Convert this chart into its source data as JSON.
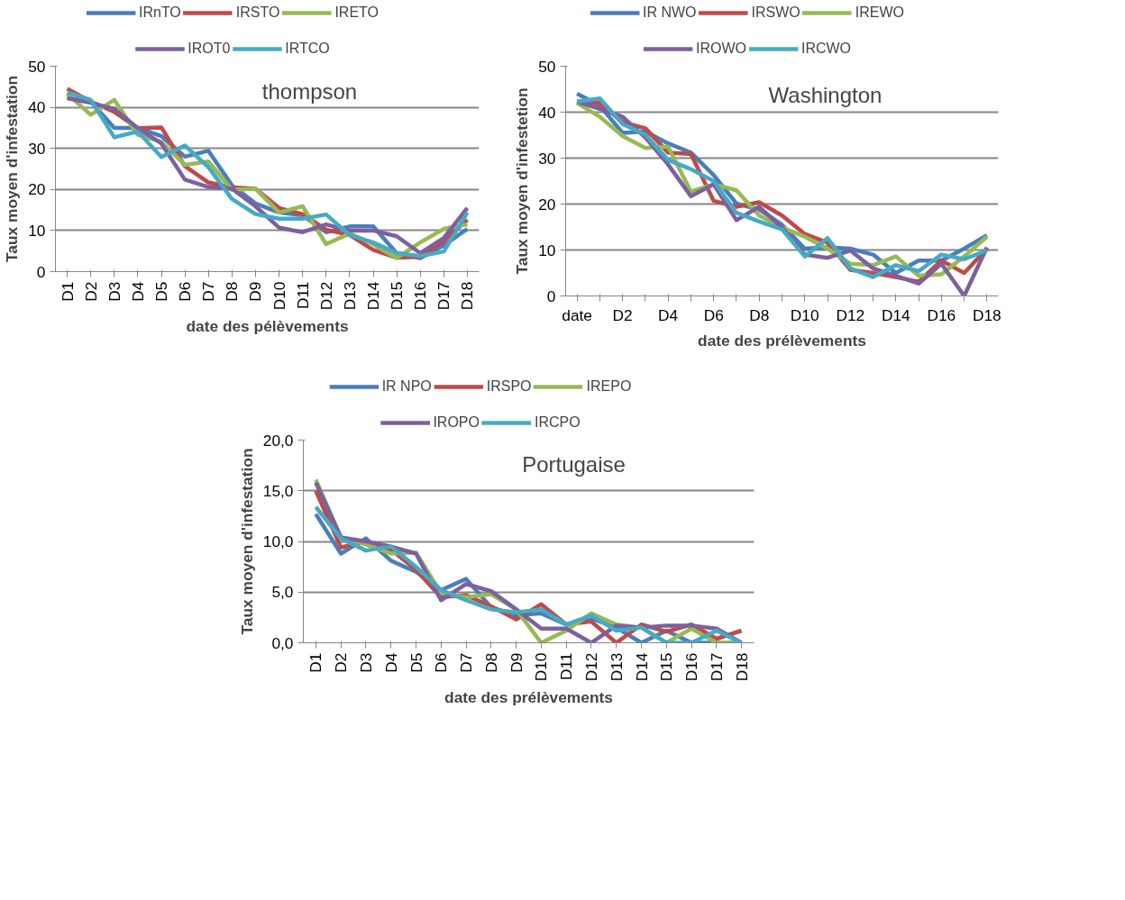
{
  "chart_data": [
    {
      "type": "line",
      "title": "thompson",
      "xlabel": "date des pélèvements",
      "ylabel": "Taux moyen d'infestation",
      "grid": "y",
      "legend": "top",
      "categories": [
        "D1",
        "D2",
        "D3",
        "D4",
        "D5",
        "D6",
        "D7",
        "D8",
        "D9",
        "D10",
        "D11",
        "D12",
        "D13",
        "D14",
        "D15",
        "D16",
        "D17",
        "D18"
      ],
      "ylim": [
        0,
        50
      ],
      "yticks": [
        0,
        10,
        20,
        30,
        40,
        50
      ],
      "series": [
        {
          "name": "IRnTO",
          "color": "#4a7ebb",
          "values": [
            42.3,
            41.4,
            35,
            35,
            33,
            28,
            29.4,
            21,
            16.6,
            14.4,
            13.7,
            9.6,
            11,
            11,
            4.5,
            3.3,
            6.4,
            10.4
          ]
        },
        {
          "name": "IRSTO",
          "color": "#be4b48",
          "values": [
            44.5,
            41.4,
            38.9,
            34.9,
            35.1,
            25.7,
            21.7,
            20.5,
            20.2,
            15.5,
            14,
            10.2,
            8.9,
            5.3,
            3.4,
            3.6,
            7.5,
            12.6
          ]
        },
        {
          "name": "IRETO",
          "color": "#98b954",
          "values": [
            43.3,
            38.2,
            41.8,
            33.3,
            31.6,
            26,
            26.8,
            19.9,
            20.2,
            14.4,
            15.9,
            6.7,
            9.3,
            6.7,
            3.3,
            7.1,
            10.4,
            11.5
          ]
        },
        {
          "name": "IROT0",
          "color": "#7d60a0",
          "values": [
            42.2,
            41.1,
            39.6,
            34.9,
            31.2,
            22.4,
            20.6,
            20.2,
            15.9,
            10.7,
            9.6,
            11.5,
            10,
            10,
            8.6,
            4.5,
            8.2,
            15.5
          ]
        },
        {
          "name": "IRTCO",
          "color": "#46aac5",
          "values": [
            43.6,
            41.8,
            32.7,
            34.1,
            27.9,
            30.7,
            25.4,
            17.7,
            14,
            12.9,
            12.9,
            13.9,
            8.9,
            7.1,
            4.5,
            3.8,
            4.9,
            14.4
          ]
        }
      ]
    },
    {
      "type": "line",
      "title": "Washington",
      "xlabel": "date des prélèvements",
      "ylabel": "Taux moyen d'infestetion",
      "grid": "y",
      "legend": "top",
      "categories": [
        "date",
        null,
        "D2",
        null,
        "D4",
        null,
        "D6",
        null,
        "D8",
        null,
        "D10",
        null,
        "D12",
        null,
        "D14",
        null,
        "D16",
        null,
        "D18"
      ],
      "ylim": [
        0,
        50
      ],
      "yticks": [
        0,
        10,
        20,
        30,
        40,
        50
      ],
      "series": [
        {
          "name": "IR NWO",
          "color": "#4a7ebb",
          "values": [
            44,
            41.4,
            35.5,
            35.8,
            33.2,
            31.2,
            26.3,
            20.1,
            18.8,
            15.5,
            10.3,
            10.6,
            10.3,
            9,
            5,
            7.7,
            7.7,
            10.3,
            13.2
          ]
        },
        {
          "name": "IRSWO",
          "color": "#be4b48",
          "values": [
            42.3,
            42,
            37.8,
            36.5,
            31.2,
            30.9,
            20.7,
            19.4,
            20.4,
            17.5,
            13.5,
            11.6,
            5.7,
            5,
            4.1,
            3.1,
            7.7,
            5,
            10.3
          ]
        },
        {
          "name": "IREWO",
          "color": "#98b954",
          "values": [
            42,
            39,
            34.8,
            32.2,
            32.5,
            22.7,
            24.3,
            23,
            17.5,
            14.9,
            12.9,
            10.3,
            7,
            6.7,
            8.6,
            4.4,
            4.7,
            8.6,
            12.9
          ]
        },
        {
          "name": "IROWO",
          "color": "#7d60a0",
          "values": [
            42.3,
            40.7,
            39,
            34.5,
            28.6,
            21.7,
            24.3,
            16.5,
            19.4,
            14.9,
            9,
            8.3,
            9.9,
            6,
            4.4,
            2.7,
            7,
            0,
            10.6
          ]
        },
        {
          "name": "IRCWO",
          "color": "#46aac5",
          "values": [
            42.3,
            43,
            37.4,
            35.1,
            29.6,
            27.6,
            25,
            18.1,
            16.2,
            14.5,
            8.6,
            12.6,
            6,
            4.1,
            6.7,
            5.4,
            9,
            8,
            9.9
          ]
        }
      ]
    },
    {
      "type": "line",
      "title": "Portugaise",
      "xlabel": "date des prélèvements",
      "ylabel": "Taux moyen d'infestation",
      "grid": "y",
      "legend": "top",
      "categories": [
        "D1",
        "D2",
        "D3",
        "D4",
        "D5",
        "D6",
        "D7",
        "D8",
        "D9",
        "D10",
        "D11",
        "D12",
        "D13",
        "D14",
        "D15",
        "D16",
        "D17",
        "D18"
      ],
      "ylim": [
        0,
        20
      ],
      "yticks": [
        {
          "value": 0,
          "label": "0,0"
        },
        {
          "value": 5,
          "label": "5,0"
        },
        {
          "value": 10,
          "label": "10,0"
        },
        {
          "value": 15,
          "label": "15,0"
        },
        {
          "value": 20,
          "label": "20,0"
        }
      ],
      "series": [
        {
          "name": "IR NPO",
          "color": "#4a7ebb",
          "values": [
            12.7,
            8.8,
            10.3,
            8.1,
            7,
            5.2,
            6.3,
            3.5,
            2.7,
            2.9,
            1.8,
            2.4,
            1.5,
            0,
            1.2,
            0,
            0,
            0
          ]
        },
        {
          "name": "IRSPO",
          "color": "#be4b48",
          "values": [
            15,
            9.4,
            10,
            9.2,
            7.2,
            4.5,
            4.7,
            3.6,
            2.3,
            3.8,
            1.8,
            2.1,
            0,
            1.8,
            1.1,
            1.8,
            0.4,
            1.2
          ]
        },
        {
          "name": "IREPO",
          "color": "#98b954",
          "values": [
            16.1,
            10.4,
            9.7,
            8.8,
            8.9,
            4.9,
            4.5,
            4.8,
            3.3,
            0,
            1.2,
            2.9,
            1.8,
            1.5,
            0,
            1.4,
            0,
            0
          ]
        },
        {
          "name": "IROPO",
          "color": "#7d60a0",
          "values": [
            15.8,
            10.4,
            10,
            9.5,
            8.8,
            4.2,
            5.8,
            5.1,
            3.3,
            1.4,
            1.4,
            0,
            1.7,
            1.5,
            1.7,
            1.7,
            1.4,
            0
          ]
        },
        {
          "name": "IRCPO",
          "color": "#46aac5",
          "values": [
            13.4,
            10.3,
            9.1,
            9.5,
            7.5,
            5.2,
            4.2,
            3.3,
            3,
            3.3,
            1.8,
            2.7,
            1.2,
            1.5,
            0,
            0,
            1.2,
            0
          ]
        }
      ]
    }
  ]
}
